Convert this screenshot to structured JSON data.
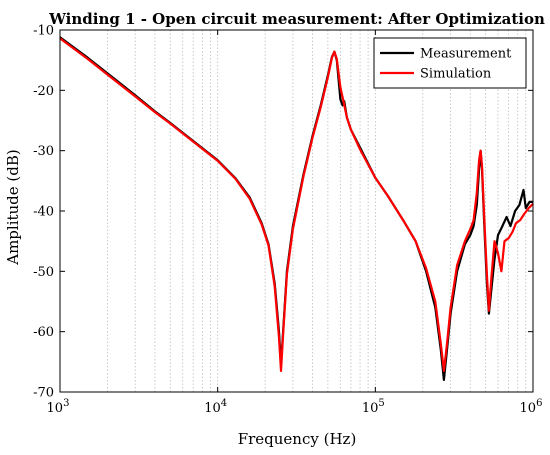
{
  "chart_data": {
    "type": "line",
    "title": "Winding 1 - Open circuit measurement: After Optimization",
    "xlabel": "Frequency (Hz)",
    "ylabel": "Amplitude (dB)",
    "x_scale": "log",
    "xlim": [
      1000,
      1000000
    ],
    "ylim": [
      -70,
      -10
    ],
    "x_ticks": [
      {
        "value": 1000,
        "base": "10",
        "exp": "3"
      },
      {
        "value": 10000,
        "base": "10",
        "exp": "4"
      },
      {
        "value": 100000,
        "base": "10",
        "exp": "5"
      },
      {
        "value": 1000000,
        "base": "10",
        "exp": "6"
      }
    ],
    "y_ticks": [
      -70,
      -60,
      -50,
      -40,
      -30,
      -20,
      -10
    ],
    "grid": "x-major-and-minor",
    "legend_position": "top-right",
    "series": [
      {
        "name": "Measurement",
        "color": "#000000",
        "points": [
          [
            1000,
            -11.2
          ],
          [
            1500,
            -14.6
          ],
          [
            2000,
            -17.2
          ],
          [
            3000,
            -20.8
          ],
          [
            4000,
            -23.5
          ],
          [
            5000,
            -25.4
          ],
          [
            7000,
            -28.4
          ],
          [
            10000,
            -31.6
          ],
          [
            13000,
            -34.6
          ],
          [
            16000,
            -37.8
          ],
          [
            19000,
            -42.0
          ],
          [
            21000,
            -45.5
          ],
          [
            23000,
            -52.0
          ],
          [
            24500,
            -60.0
          ],
          [
            25200,
            -65.5
          ],
          [
            26000,
            -60.0
          ],
          [
            27500,
            -50.0
          ],
          [
            30000,
            -42.5
          ],
          [
            35000,
            -34.0
          ],
          [
            40000,
            -27.5
          ],
          [
            45000,
            -22.5
          ],
          [
            50000,
            -17.5
          ],
          [
            53000,
            -14.5
          ],
          [
            55000,
            -13.6
          ],
          [
            57000,
            -15.0
          ],
          [
            60000,
            -21.5
          ],
          [
            62000,
            -22.5
          ],
          [
            63500,
            -21.8
          ],
          [
            66000,
            -24.5
          ],
          [
            70000,
            -26.5
          ],
          [
            80000,
            -29.5
          ],
          [
            100000,
            -34.5
          ],
          [
            120000,
            -37.5
          ],
          [
            150000,
            -41.5
          ],
          [
            180000,
            -45.0
          ],
          [
            210000,
            -50.0
          ],
          [
            240000,
            -56.0
          ],
          [
            260000,
            -63.0
          ],
          [
            272000,
            -68.0
          ],
          [
            285000,
            -63.0
          ],
          [
            300000,
            -57.0
          ],
          [
            330000,
            -50.0
          ],
          [
            370000,
            -45.5
          ],
          [
            400000,
            -44.0
          ],
          [
            420000,
            -42.5
          ],
          [
            440000,
            -39.0
          ],
          [
            455000,
            -33.0
          ],
          [
            465000,
            -30.0
          ],
          [
            475000,
            -33.0
          ],
          [
            490000,
            -42.0
          ],
          [
            510000,
            -52.0
          ],
          [
            525000,
            -57.0
          ],
          [
            545000,
            -53.0
          ],
          [
            570000,
            -48.0
          ],
          [
            600000,
            -44.0
          ],
          [
            640000,
            -42.5
          ],
          [
            680000,
            -41.0
          ],
          [
            720000,
            -42.5
          ],
          [
            770000,
            -40.0
          ],
          [
            820000,
            -39.0
          ],
          [
            870000,
            -36.5
          ],
          [
            900000,
            -39.5
          ],
          [
            950000,
            -38.5
          ],
          [
            1000000,
            -38.5
          ]
        ]
      },
      {
        "name": "Simulation",
        "color": "#ff0000",
        "points": [
          [
            1000,
            -11.4
          ],
          [
            1500,
            -14.8
          ],
          [
            2000,
            -17.4
          ],
          [
            3000,
            -21.0
          ],
          [
            4000,
            -23.6
          ],
          [
            5000,
            -25.5
          ],
          [
            7000,
            -28.5
          ],
          [
            10000,
            -31.7
          ],
          [
            13000,
            -34.7
          ],
          [
            16000,
            -38.0
          ],
          [
            19000,
            -42.2
          ],
          [
            21000,
            -45.7
          ],
          [
            23000,
            -52.5
          ],
          [
            24500,
            -61.0
          ],
          [
            25200,
            -66.5
          ],
          [
            26000,
            -60.5
          ],
          [
            27500,
            -50.5
          ],
          [
            30000,
            -43.0
          ],
          [
            35000,
            -34.3
          ],
          [
            40000,
            -27.8
          ],
          [
            45000,
            -22.8
          ],
          [
            50000,
            -17.8
          ],
          [
            53000,
            -14.6
          ],
          [
            55000,
            -13.6
          ],
          [
            57000,
            -14.8
          ],
          [
            60000,
            -19.5
          ],
          [
            63000,
            -22.0
          ],
          [
            66000,
            -24.5
          ],
          [
            70000,
            -26.5
          ],
          [
            80000,
            -29.8
          ],
          [
            100000,
            -34.5
          ],
          [
            120000,
            -37.5
          ],
          [
            150000,
            -41.5
          ],
          [
            180000,
            -45.0
          ],
          [
            210000,
            -49.5
          ],
          [
            240000,
            -55.0
          ],
          [
            260000,
            -62.0
          ],
          [
            272000,
            -66.5
          ],
          [
            285000,
            -62.0
          ],
          [
            300000,
            -56.0
          ],
          [
            330000,
            -49.0
          ],
          [
            370000,
            -45.0
          ],
          [
            400000,
            -43.0
          ],
          [
            420000,
            -41.5
          ],
          [
            440000,
            -37.0
          ],
          [
            455000,
            -31.5
          ],
          [
            465000,
            -30.0
          ],
          [
            475000,
            -32.5
          ],
          [
            490000,
            -41.0
          ],
          [
            510000,
            -50.5
          ],
          [
            525000,
            -56.5
          ],
          [
            545000,
            -51.0
          ],
          [
            570000,
            -45.0
          ],
          [
            600000,
            -47.0
          ],
          [
            630000,
            -50.0
          ],
          [
            660000,
            -45.0
          ],
          [
            700000,
            -44.5
          ],
          [
            740000,
            -43.5
          ],
          [
            780000,
            -42.0
          ],
          [
            830000,
            -41.5
          ],
          [
            880000,
            -40.5
          ],
          [
            940000,
            -39.5
          ],
          [
            1000000,
            -38.8
          ]
        ]
      }
    ]
  }
}
